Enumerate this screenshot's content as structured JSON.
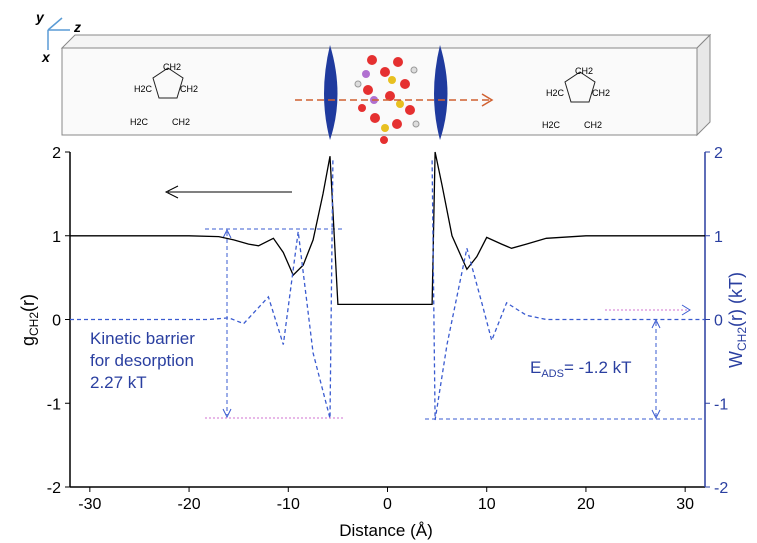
{
  "chart_data": {
    "type": "line",
    "axis_letters": [
      "y",
      "z",
      "x"
    ],
    "molecule_labels": [
      "CH2",
      "H2C",
      "CH2",
      "H2C",
      "CH2"
    ],
    "xlabel": "Distance (Å)",
    "ylabel": [
      "g",
      "CH2",
      "(r)"
    ],
    "y2label": [
      "W",
      "CH2",
      "(r) (kT)"
    ],
    "annotations": {
      "barrier": [
        "Kinetic barrier",
        "for desorption",
        "2.27 kT"
      ],
      "eads": [
        "E",
        "ADS",
        "= -1.2 kT"
      ]
    },
    "xlim": [
      -32,
      32
    ],
    "xticks": [
      -30,
      -20,
      -10,
      0,
      10,
      20,
      30
    ],
    "ylim": [
      -2,
      2
    ],
    "yticks": [
      -2,
      -1,
      0,
      1,
      2
    ],
    "y2lim": [
      -2,
      2
    ],
    "y2ticks": [
      -2,
      -1,
      0,
      1,
      2
    ],
    "series": [
      {
        "name": "g",
        "color": "#000000",
        "dash": false,
        "x": [
          -32,
          -20,
          -17,
          -15.5,
          -14,
          -13,
          -11.5,
          -10.5,
          -9.5,
          -8.5,
          -7.5,
          -6.5,
          -5.8,
          -5,
          4.5,
          4.8,
          5.5,
          6.5,
          8,
          9,
          10,
          11.5,
          12.5,
          14,
          16,
          20,
          32
        ],
        "values": [
          1,
          1,
          0.99,
          0.95,
          0.9,
          0.88,
          0.97,
          0.8,
          0.53,
          0.65,
          0.95,
          1.5,
          1.95,
          0.18,
          0.18,
          2,
          1.6,
          1,
          0.6,
          0.75,
          0.98,
          0.9,
          0.85,
          0.9,
          0.97,
          1,
          1
        ]
      },
      {
        "name": "W",
        "color": "#3a5bd0",
        "dash": true,
        "axis": "y2",
        "x": [
          -32,
          -18,
          -16,
          -14.5,
          -12,
          -10.5,
          -9,
          -7.5,
          -5.8,
          -5.5,
          0,
          4.5,
          4.8,
          6,
          8,
          9.5,
          10.5,
          12,
          14,
          16,
          20,
          32
        ],
        "values": [
          0,
          0,
          0.02,
          -0.05,
          0.27,
          -0.3,
          1.05,
          -0.4,
          -1.18,
          1.9,
          null,
          1.9,
          -1.2,
          -0.3,
          0.85,
          0.2,
          -0.25,
          0.2,
          0.05,
          0,
          0,
          0
        ]
      }
    ]
  }
}
